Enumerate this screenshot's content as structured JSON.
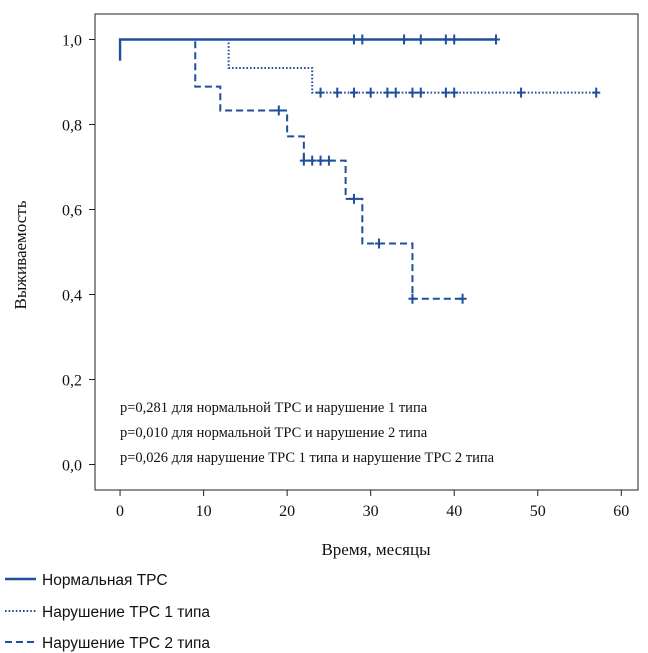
{
  "chart_data": {
    "type": "line",
    "title": "",
    "xlabel": "Время, месяцы",
    "ylabel": "Выживаемость",
    "xlim": [
      -3,
      62
    ],
    "ylim": [
      -0.06,
      1.06
    ],
    "x_ticks": [
      0,
      10,
      20,
      30,
      40,
      50,
      60
    ],
    "x_tick_labels": [
      "0",
      "10",
      "20",
      "30",
      "40",
      "50",
      "60"
    ],
    "y_ticks": [
      0.0,
      0.2,
      0.4,
      0.6,
      0.8,
      1.0
    ],
    "y_tick_labels": [
      "0,0",
      "0,2",
      "0,4",
      "0,6",
      "0,8",
      "1,0"
    ],
    "grid": false,
    "legend_position": "bottom-left",
    "color": "#1f4e9e",
    "series": [
      {
        "name": "Нормальная ТРС",
        "style": "solid",
        "steps": [
          [
            0,
            0.95
          ],
          [
            0,
            1.0
          ],
          [
            45,
            1.0
          ]
        ],
        "censored": [
          28,
          29,
          34,
          36,
          39,
          40,
          45
        ]
      },
      {
        "name": "Нарушение ТРС 1 типа",
        "style": "dotted",
        "steps": [
          [
            0,
            1.0
          ],
          [
            13,
            1.0
          ],
          [
            13,
            0.933
          ],
          [
            23,
            0.933
          ],
          [
            23,
            0.875
          ],
          [
            57,
            0.875
          ]
        ],
        "censored": [
          24,
          26,
          28,
          30,
          32,
          33,
          35,
          36,
          39,
          40,
          48,
          57
        ]
      },
      {
        "name": "Нарушение ТРС 2 типа",
        "style": "dashed",
        "steps": [
          [
            0,
            1.0
          ],
          [
            9,
            1.0
          ],
          [
            9,
            0.889
          ],
          [
            12,
            0.889
          ],
          [
            12,
            0.833
          ],
          [
            20,
            0.833
          ],
          [
            20,
            0.772
          ],
          [
            22,
            0.772
          ],
          [
            22,
            0.715
          ],
          [
            27,
            0.715
          ],
          [
            27,
            0.625
          ],
          [
            29,
            0.625
          ],
          [
            29,
            0.52
          ],
          [
            35,
            0.52
          ],
          [
            35,
            0.39
          ],
          [
            41,
            0.39
          ]
        ],
        "censored": [
          19,
          22,
          23,
          24,
          25,
          28,
          31,
          35,
          41
        ]
      }
    ],
    "annotations": [
      "p=0,281 для нормальной ТРС и нарушение 1 типа",
      "p=0,010 для нормальной ТРС и нарушение 2 типа",
      "p=0,026 для нарушение ТРС 1 типа и нарушение ТРС 2 типа"
    ]
  }
}
